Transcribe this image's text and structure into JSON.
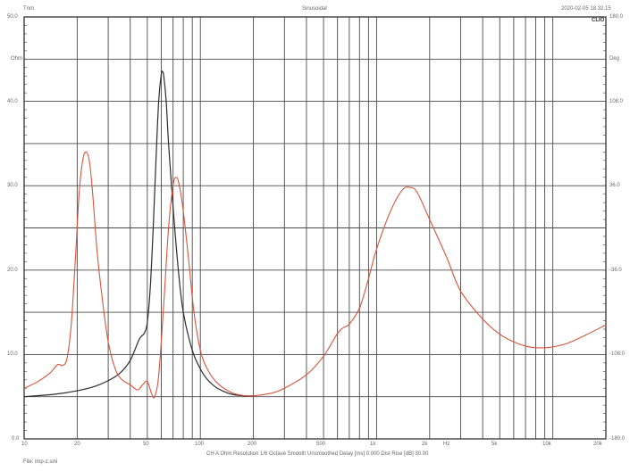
{
  "header": {
    "left_title": "Tnm",
    "center_title": "Sinusoidal",
    "timestamp": "2020-02-05 18.32.15",
    "brand": "CLIO"
  },
  "axes": {
    "left_unit": "Ohm",
    "right_unit": "Deg",
    "x_unit": "Hz",
    "left_ticks": [
      "50.0",
      "40.0",
      "30.0",
      "20.0",
      "10.0",
      "0.0"
    ],
    "right_ticks": [
      "180.0",
      "108.0",
      "36.0",
      "-36.0",
      "-108.0",
      "-180.0"
    ],
    "x_ticks": [
      "10",
      "20",
      "50",
      "100",
      "200",
      "500",
      "1k",
      "2k",
      "5k",
      "10k",
      "20k"
    ]
  },
  "footer": {
    "settings": "CH A   Ohm   Resolution 1/6 Octave   Smooth Unsmoothed   Delay [ms] 0.000   Dist Rise [dB] 30.00",
    "file": "File: imp-z.sini"
  },
  "colors": {
    "grid": "#4a4a4a",
    "frame": "#333333",
    "series_red": "#d9533a",
    "series_black": "#2b2b2b"
  },
  "chart_data": {
    "type": "line",
    "title": "Sinusoidal",
    "xlabel": "Hz",
    "ylabel": "Ohm",
    "y2label": "Deg",
    "xscale": "log",
    "xlim": [
      10,
      20000
    ],
    "ylim": [
      0,
      50
    ],
    "y2lim": [
      -180,
      180
    ],
    "grid": true,
    "x_ticks": [
      10,
      20,
      50,
      100,
      200,
      500,
      1000,
      2000,
      5000,
      10000,
      20000
    ],
    "series": [
      {
        "name": "Impedance (red)",
        "color": "#d9533a",
        "x": [
          10,
          12,
          14,
          15.5,
          16.5,
          17.5,
          18.5,
          19.5,
          20.5,
          21.5,
          22.5,
          23.5,
          24.5,
          26,
          28,
          30,
          33,
          36,
          40,
          44,
          47,
          50,
          53,
          55,
          58,
          62,
          66,
          70,
          73,
          76,
          80,
          86,
          92,
          100,
          110,
          125,
          150,
          180,
          200,
          250,
          300,
          400,
          500,
          600,
          650,
          700,
          800,
          900,
          1000,
          1200,
          1400,
          1550,
          1700,
          2000,
          2500,
          3000,
          4000,
          5000,
          6000,
          7000,
          8000,
          9000,
          10000,
          12000,
          15000,
          20000
        ],
        "values": [
          6.0,
          6.8,
          7.8,
          8.8,
          8.7,
          9.5,
          13.5,
          21,
          29,
          33,
          34.0,
          32.8,
          29,
          22,
          16,
          11.5,
          8.2,
          7.0,
          6.4,
          5.8,
          6.4,
          6.8,
          5.3,
          5.0,
          7.5,
          16,
          25,
          30,
          31,
          30,
          27,
          21,
          15,
          10.5,
          8.2,
          6.6,
          5.5,
          5.1,
          5.1,
          5.4,
          6.0,
          7.6,
          9.8,
          12.5,
          13.2,
          13.6,
          15.5,
          19,
          22.5,
          27,
          29.5,
          29.8,
          29.2,
          26,
          21.5,
          17.5,
          14.2,
          12.4,
          11.5,
          11.0,
          10.8,
          10.8,
          10.9,
          11.3,
          12.2,
          13.5
        ]
      },
      {
        "name": "Impedance (black)",
        "color": "#2b2b2b",
        "x": [
          10,
          15,
          20,
          25,
          30,
          35,
          40,
          45,
          48,
          50,
          52,
          54,
          56,
          58,
          60,
          61,
          62,
          64,
          66,
          70,
          75,
          80,
          90,
          100,
          110,
          125,
          150,
          180,
          200
        ],
        "values": [
          5.0,
          5.3,
          5.7,
          6.2,
          6.9,
          7.8,
          9.3,
          11.8,
          12.5,
          13.8,
          18,
          25,
          33,
          40,
          43.2,
          43.5,
          43.0,
          40,
          35,
          27.5,
          20,
          15,
          10.5,
          8.3,
          7.0,
          6.0,
          5.3,
          5.1,
          5.1
        ]
      }
    ]
  }
}
